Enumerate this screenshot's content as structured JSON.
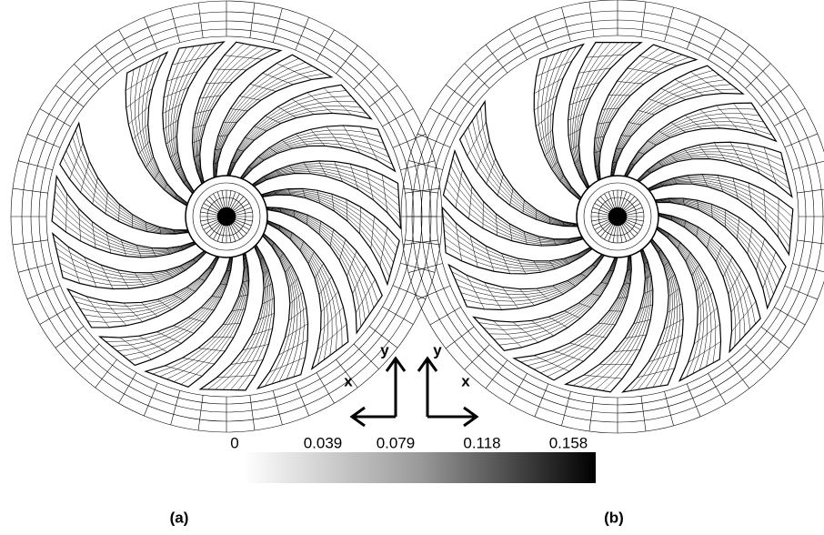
{
  "panels": [
    {
      "label": "(a)"
    },
    {
      "label": "(b)"
    }
  ],
  "axes": [
    {
      "x": "x",
      "y": "y"
    },
    {
      "x": "x",
      "y": "y"
    }
  ],
  "colorbar": {
    "ticks": [
      0,
      0.039,
      0.079,
      0.118,
      0.158
    ]
  }
}
